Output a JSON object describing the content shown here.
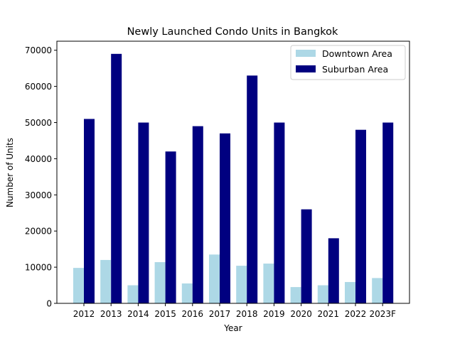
{
  "chart_data": {
    "type": "bar",
    "title": "Newly Launched Condo Units in Bangkok",
    "xlabel": "Year",
    "ylabel": "Number of Units",
    "categories": [
      "2012",
      "2013",
      "2014",
      "2015",
      "2016",
      "2017",
      "2018",
      "2019",
      "2020",
      "2021",
      "2022",
      "2023F"
    ],
    "series": [
      {
        "name": "Downtown Area",
        "color": "#add8e6",
        "values": [
          9800,
          12000,
          5000,
          11400,
          5500,
          13500,
          10400,
          11000,
          4500,
          5000,
          5900,
          7000
        ]
      },
      {
        "name": "Suburban Area",
        "color": "#000080",
        "values": [
          51000,
          69000,
          50000,
          42000,
          49000,
          47000,
          63000,
          50000,
          26000,
          18000,
          48000,
          50000
        ]
      }
    ],
    "ylim": [
      0,
      72500
    ],
    "yticks": [
      0,
      10000,
      20000,
      30000,
      40000,
      50000,
      60000,
      70000
    ],
    "grid": false,
    "legend_position": "upper right"
  }
}
